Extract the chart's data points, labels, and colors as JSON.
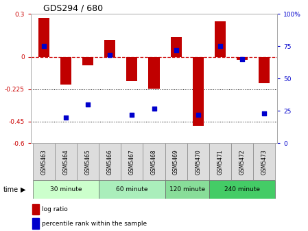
{
  "title": "GDS294 / 680",
  "samples": [
    "GSM5463",
    "GSM5464",
    "GSM5465",
    "GSM5466",
    "GSM5467",
    "GSM5468",
    "GSM5469",
    "GSM5470",
    "GSM5471",
    "GSM5472",
    "GSM5473"
  ],
  "log_ratio": [
    0.27,
    -0.19,
    -0.06,
    0.12,
    -0.17,
    -0.22,
    0.14,
    -0.48,
    0.25,
    -0.02,
    -0.18
  ],
  "percentile": [
    75,
    20,
    30,
    68,
    22,
    27,
    72,
    22,
    75,
    65,
    23
  ],
  "bar_color": "#c00000",
  "dot_color": "#0000cc",
  "ylim_left": [
    -0.6,
    0.3
  ],
  "ylim_right": [
    0,
    100
  ],
  "yticks_left": [
    0.3,
    0.0,
    -0.225,
    -0.45,
    -0.6
  ],
  "ytick_labels_left": [
    "0.3",
    "0",
    "-0.225",
    "-0.45",
    "-0.6"
  ],
  "yticks_right": [
    100,
    75,
    50,
    25,
    0
  ],
  "ytick_labels_right": [
    "100%",
    "75",
    "50",
    "25",
    "0"
  ],
  "hline_y": 0,
  "hline_color": "#cc0000",
  "dotted_lines": [
    -0.225,
    -0.45
  ],
  "group_spans": [
    {
      "start": 0,
      "end": 2,
      "label": "30 minute",
      "color": "#ccffcc"
    },
    {
      "start": 3,
      "end": 5,
      "label": "60 minute",
      "color": "#aaeebb"
    },
    {
      "start": 6,
      "end": 7,
      "label": "120 minute",
      "color": "#88dd99"
    },
    {
      "start": 8,
      "end": 10,
      "label": "240 minute",
      "color": "#44cc66"
    }
  ],
  "time_label": "time",
  "legend_items": [
    {
      "label": "log ratio",
      "color": "#c00000",
      "marker": "s"
    },
    {
      "label": "percentile rank within the sample",
      "color": "#0000cc",
      "marker": "s"
    }
  ],
  "bar_width": 0.5,
  "spine_color": "#aaaaaa"
}
